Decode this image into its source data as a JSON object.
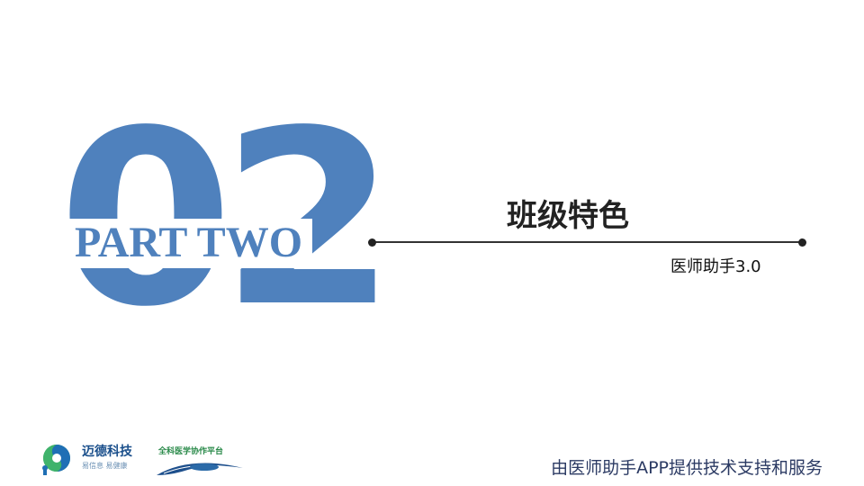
{
  "slide": {
    "big_number": "02",
    "part_label": "PART TWO",
    "section_title": "班级特色",
    "subtitle": "医师助手3.0",
    "footer": "由医师助手APP提供技术支持和服务"
  },
  "logos": [
    {
      "name": "迈德科技",
      "slogan": "易信息 易健康",
      "icon": "company-logo"
    },
    {
      "name": "全科医学协作平台",
      "icon": "allied-physician-logo"
    }
  ],
  "colors": {
    "accent": "#4f81bd",
    "title_text": "#222222",
    "footer_text": "#2b3a63"
  }
}
